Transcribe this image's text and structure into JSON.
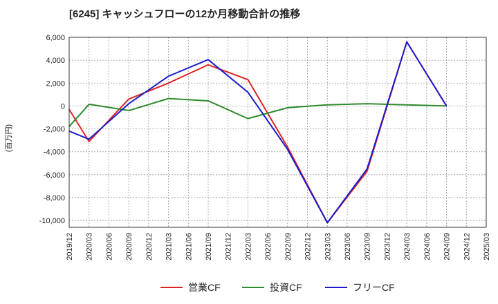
{
  "chart_data": {
    "type": "line",
    "title": "[6245]  キャッシュフローの12か月移動合計の推移",
    "ylabel": "(百万円)",
    "xlabel": "",
    "ylim": [
      -10600,
      6000
    ],
    "yticks": [
      6000,
      4000,
      2000,
      0,
      -2000,
      -4000,
      -6000,
      -8000,
      -10000
    ],
    "ytick_labels": [
      "6,000",
      "4,000",
      "2,000",
      "0",
      "-2,000",
      "-4,000",
      "-6,000",
      "-8,000",
      "-10,000"
    ],
    "categories": [
      "2019/12",
      "2020/03",
      "2020/06",
      "2020/09",
      "2020/12",
      "2021/03",
      "2021/06",
      "2021/09",
      "2021/12",
      "2022/03",
      "2022/06",
      "2022/09",
      "2022/12",
      "2023/03",
      "2023/06",
      "2023/09",
      "2023/12",
      "2024/03",
      "2024/06",
      "2024/09",
      "2024/12",
      "2025/03"
    ],
    "series": [
      {
        "name": "営業CF",
        "color": "#dd2222",
        "values": [
          -300,
          -3100,
          null,
          600,
          null,
          2000,
          null,
          3600,
          null,
          2300,
          null,
          -3600,
          null,
          -10200,
          null,
          -5700,
          null,
          5600,
          null,
          0,
          null,
          null
        ]
      },
      {
        "name": "投資CF",
        "color": "#2e8b2e",
        "values": [
          -1800,
          150,
          null,
          -400,
          null,
          650,
          null,
          450,
          null,
          -1100,
          null,
          -150,
          null,
          100,
          null,
          200,
          null,
          100,
          null,
          0,
          null,
          null
        ]
      },
      {
        "name": "フリーCF",
        "color": "#1a1acc",
        "values": [
          -2200,
          -2900,
          null,
          200,
          null,
          2600,
          null,
          4050,
          null,
          1200,
          null,
          -3800,
          null,
          -10200,
          null,
          -5500,
          null,
          5600,
          null,
          0,
          null,
          null
        ]
      }
    ],
    "legend_position": "bottom-center",
    "grid": true
  }
}
